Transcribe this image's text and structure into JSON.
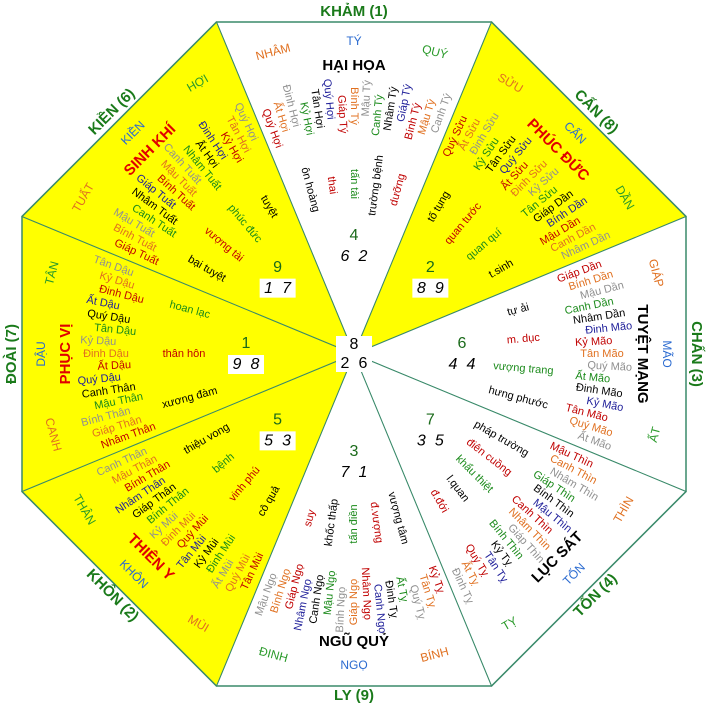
{
  "center": {
    "top": 8,
    "left": 2,
    "right": 6
  },
  "sectors": [
    {
      "gua": "KHẢM (1)",
      "mountains": [
        "NHÂM",
        "TÝ",
        "QUÝ"
      ],
      "star": "HẠI HỌA",
      "stems": [
        "Quý Hợi",
        "Ất Hợi",
        "Đinh Hợi",
        "Kỷ Hợi",
        "Tân Hợi",
        "Quý Hợi",
        "Giáp Tý",
        "Bính Tý",
        "Mậu Tý",
        "Canh Tý",
        "Nhâm Tý",
        "Giáp Tý",
        "Bính Tý",
        "Mậu Tý",
        "Canh Tý"
      ],
      "words": [
        "ôn hoàng",
        "thai",
        "tấn tài",
        "trường bệnh",
        "dưỡng"
      ],
      "stars": {
        "top": 4,
        "left": 6,
        "right": 2
      }
    },
    {
      "gua": "CẤN (8)",
      "mountains": [
        "SỬU",
        "CẤN",
        "DẦN"
      ],
      "star": "PHÚC ĐỨC",
      "stems": [
        "Quý Sửu",
        "Ất Sửu",
        "Đinh Sửu",
        "Kỷ Sửu",
        "Tân Sửu",
        "Quý Sửu",
        "Ất Sửu",
        "Đinh Sửu",
        "Kỷ Sửu",
        "Tân Sửu",
        "Giáp Dần",
        "Bính Dần",
        "Mậu Dần",
        "Canh Dần",
        "Nhâm Dần"
      ],
      "words": [
        "tố tụng",
        "quan tước",
        "quan quí",
        "t.sinh"
      ],
      "stars": {
        "top": 2,
        "left": 8,
        "right": 9
      }
    },
    {
      "gua": "CHẤN (3)",
      "mountains": [
        "GIÁP",
        "MÃO",
        "ẤT"
      ],
      "star": "TUYỆT MẠNG",
      "stems": [
        "Giáp Dần",
        "Bính Dần",
        "Mậu Dần",
        "Canh Dần",
        "Nhâm Dần",
        "Đinh Mão",
        "Kỷ Mão",
        "Tân Mão",
        "Quý Mão",
        "Ất Mão",
        "Đinh Mão",
        "Kỷ Mão",
        "Tân Mão",
        "Quý Mão",
        "Ất Mão"
      ],
      "words": [
        "tự ải",
        "m. dục",
        "vượng trang",
        "hưng phước"
      ],
      "stars": {
        "top": 6,
        "left": 4,
        "right": 4
      }
    },
    {
      "gua": "TỐN (4)",
      "mountains": [
        "THÌN",
        "TỐN",
        "TỴ"
      ],
      "star": "LỤC SÁT",
      "stems": [
        "Mậu Thìn",
        "Canh Thìn",
        "Nhâm Thìn",
        "Giáp Thìn",
        "Bính Thìn",
        "Mậu Thìn",
        "Canh Thìn",
        "Nhâm Thìn",
        "Giáp Thìn",
        "Bính Thìn",
        "Kỷ Tỵ",
        "Tân Tỵ",
        "Quý Tỵ",
        "Ất Tỵ",
        "Đinh Tỵ"
      ],
      "words": [
        "pháp trường",
        "điên cuồng",
        "khẩu thiệt",
        "l.quan",
        "đ.đới"
      ],
      "stars": {
        "top": 7,
        "left": 3,
        "right": 5
      }
    },
    {
      "gua": "LY (9)",
      "mountains": [
        "BÍNH",
        "NGỌ",
        "ĐINH"
      ],
      "star": "NGŨ QUỶ",
      "stems": [
        "Kỷ Tỵ",
        "Tân Tỵ",
        "Quý Tỵ",
        "Ất Tỵ",
        "Đinh Tỵ",
        "Canh Ngọ",
        "Nhâm Ngọ",
        "Giáp Ngọ",
        "Bính Ngọ",
        "Mậu Ngọ",
        "Canh Ngọ",
        "Nhâm Ngọ",
        "Giáp Ngọ",
        "Bính Ngọ",
        "Mậu Ngọ"
      ],
      "words": [
        "vượng tâm",
        "đ.vượng",
        "tấn điền",
        "khốc thấp",
        "suy"
      ],
      "stars": {
        "top": 3,
        "left": 7,
        "right": 1
      }
    },
    {
      "gua": "KHÔN (2)",
      "mountains": [
        "MÙI",
        "KHÔN",
        "THÂN"
      ],
      "star": "THIÊN Y",
      "stems": [
        "Tân Mùi",
        "Quý Mùi",
        "Ất Mùi",
        "Đinh Mùi",
        "Kỷ Mùi",
        "Tân Mùi",
        "Quý Mùi",
        "Đinh Mùi",
        "Kỷ Mùi",
        "Bính Thân",
        "Giáp Thân",
        "Nhâm Thân",
        "Bính Thân",
        "Mậu Thân",
        "Canh Thân"
      ],
      "words": [
        "cô quả",
        "vinh phú",
        "bệnh",
        "thiệu vong"
      ],
      "stars": {
        "top": 5,
        "left": 5,
        "right": 3
      }
    },
    {
      "gua": "ĐOÀI (7)",
      "mountains": [
        "CANH",
        "DẬU",
        "TÂN"
      ],
      "star": "PHỤC VỊ",
      "stems": [
        "Nhâm Thân",
        "Giáp Thân",
        "Bính Thân",
        "Mậu Thân",
        "Canh Thân",
        "Quý Dậu",
        "Ất Dậu",
        "Đinh Dậu",
        "Kỷ Dậu",
        "Tân Dậu",
        "Quý Dậu",
        "Ất Dậu",
        "Đinh Dậu",
        "Kỷ Dậu",
        "Tân Dậu"
      ],
      "words": [
        "xương đàm",
        "thân hôn",
        "hoan lạc"
      ],
      "stars": {
        "top": 1,
        "left": 9,
        "right": 8
      }
    },
    {
      "gua": "KIỀN (6)",
      "mountains": [
        "TUẤT",
        "KIỀN",
        "HỢI"
      ],
      "star": "SINH KHÍ",
      "stems": [
        "Giáp Tuất",
        "Bính Tuất",
        "Mậu Tuất",
        "Canh Tuất",
        "Nhâm Tuất",
        "Giáp Tuất",
        "Bính Tuất",
        "Mậu Tuất",
        "Canh Tuất",
        "Nhâm Tuất",
        "Ất Hợi",
        "Đinh Hợi",
        "Kỷ Hợi",
        "Tân Hợi",
        "Quý Hợi"
      ],
      "words": [
        "bại tuyệt",
        "vượng tài",
        "phúc đức",
        "tuyệt"
      ],
      "stars": {
        "top": 9,
        "left": 1,
        "right": 7
      }
    }
  ]
}
